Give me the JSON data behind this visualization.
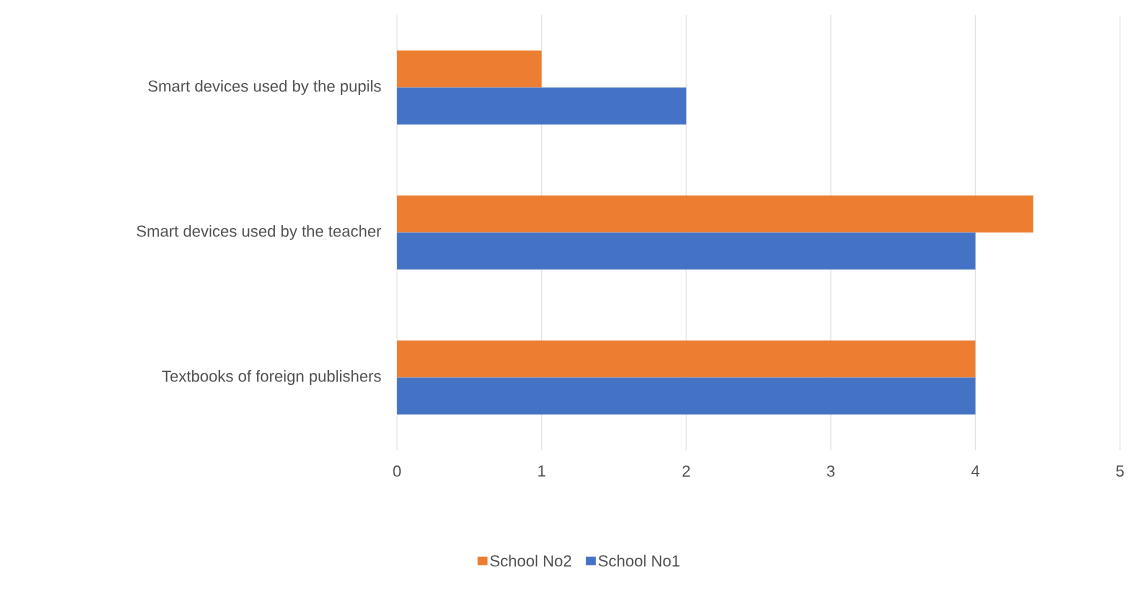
{
  "chart_data": {
    "type": "bar",
    "orientation": "horizontal",
    "categories": [
      "Smart devices used by the pupils",
      "Smart devices used by the teacher",
      "Textbooks of foreign publishers"
    ],
    "series": [
      {
        "name": "School No2",
        "color": "#ed7d31",
        "values": [
          1,
          4.4,
          4
        ]
      },
      {
        "name": "School No1",
        "color": "#4472c4",
        "values": [
          2,
          4,
          4
        ]
      }
    ],
    "xlim": [
      0,
      5
    ],
    "xticks": [
      0,
      1,
      2,
      3,
      4,
      5
    ],
    "grid": "x",
    "legend": "bottom"
  }
}
